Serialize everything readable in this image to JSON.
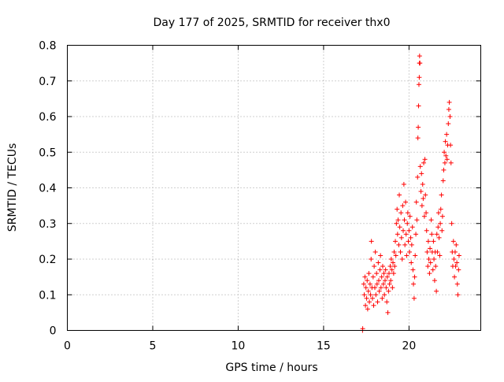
{
  "chart_data": {
    "type": "scatter",
    "title": "Day 177 of 2025, SRMTID for receiver thx0",
    "xlabel": "GPS time / hours",
    "ylabel": "SRMTID / TECUs",
    "xlim": [
      0,
      24.2
    ],
    "ylim": [
      0,
      0.8
    ],
    "xticks": [
      0,
      5,
      10,
      15,
      20
    ],
    "xtick_labels": [
      "0",
      "5",
      "10",
      "15",
      "20"
    ],
    "yticks": [
      0,
      0.1,
      0.2,
      0.3,
      0.4,
      0.5,
      0.6,
      0.7,
      0.8
    ],
    "ytick_labels": [
      "0",
      "0.1",
      "0.2",
      "0.3",
      "0.4",
      "0.5",
      "0.6",
      "0.7",
      "0.8"
    ],
    "grid": true,
    "marker": "+",
    "marker_color": "#ff0000",
    "series": [
      {
        "name": "SRMTID",
        "points": [
          [
            17.28,
            0.0
          ],
          [
            17.29,
            0.005
          ],
          [
            17.35,
            0.13
          ],
          [
            17.38,
            0.1
          ],
          [
            17.42,
            0.15
          ],
          [
            17.45,
            0.07
          ],
          [
            17.48,
            0.12
          ],
          [
            17.52,
            0.09
          ],
          [
            17.55,
            0.14
          ],
          [
            17.58,
            0.06
          ],
          [
            17.62,
            0.11
          ],
          [
            17.65,
            0.16
          ],
          [
            17.68,
            0.08
          ],
          [
            17.72,
            0.13
          ],
          [
            17.75,
            0.1
          ],
          [
            17.78,
            0.2
          ],
          [
            17.8,
            0.25
          ],
          [
            17.83,
            0.12
          ],
          [
            17.86,
            0.09
          ],
          [
            17.9,
            0.15
          ],
          [
            17.93,
            0.07
          ],
          [
            17.96,
            0.18
          ],
          [
            18.0,
            0.12
          ],
          [
            18.03,
            0.22
          ],
          [
            18.06,
            0.1
          ],
          [
            18.1,
            0.16
          ],
          [
            18.13,
            0.13
          ],
          [
            18.16,
            0.08
          ],
          [
            18.2,
            0.19
          ],
          [
            18.23,
            0.14
          ],
          [
            18.26,
            0.11
          ],
          [
            18.3,
            0.17
          ],
          [
            18.33,
            0.21
          ],
          [
            18.36,
            0.12
          ],
          [
            18.4,
            0.15
          ],
          [
            18.43,
            0.09
          ],
          [
            18.46,
            0.18
          ],
          [
            18.5,
            0.13
          ],
          [
            18.53,
            0.16
          ],
          [
            18.56,
            0.1
          ],
          [
            18.6,
            0.14
          ],
          [
            18.63,
            0.17
          ],
          [
            18.66,
            0.12
          ],
          [
            18.7,
            0.08
          ],
          [
            18.73,
            0.15
          ],
          [
            18.76,
            0.05
          ],
          [
            18.8,
            0.11
          ],
          [
            18.83,
            0.16
          ],
          [
            18.86,
            0.13
          ],
          [
            18.9,
            0.18
          ],
          [
            18.93,
            0.14
          ],
          [
            18.96,
            0.2
          ],
          [
            19.0,
            0.17
          ],
          [
            19.03,
            0.12
          ],
          [
            19.06,
            0.19
          ],
          [
            19.1,
            0.16
          ],
          [
            19.13,
            0.22
          ],
          [
            19.16,
            0.18
          ],
          [
            19.2,
            0.25
          ],
          [
            19.23,
            0.21
          ],
          [
            19.26,
            0.3
          ],
          [
            19.3,
            0.34
          ],
          [
            19.33,
            0.27
          ],
          [
            19.36,
            0.31
          ],
          [
            19.4,
            0.24
          ],
          [
            19.43,
            0.38
          ],
          [
            19.46,
            0.29
          ],
          [
            19.5,
            0.22
          ],
          [
            19.53,
            0.33
          ],
          [
            19.56,
            0.26
          ],
          [
            19.6,
            0.2
          ],
          [
            19.63,
            0.35
          ],
          [
            19.66,
            0.28
          ],
          [
            19.7,
            0.41
          ],
          [
            19.73,
            0.31
          ],
          [
            19.76,
            0.24
          ],
          [
            19.8,
            0.36
          ],
          [
            19.83,
            0.27
          ],
          [
            19.86,
            0.21
          ],
          [
            19.9,
            0.3
          ],
          [
            19.93,
            0.33
          ],
          [
            19.96,
            0.25
          ],
          [
            20.0,
            0.28
          ],
          [
            20.03,
            0.22
          ],
          [
            20.06,
            0.32
          ],
          [
            20.1,
            0.26
          ],
          [
            20.13,
            0.19
          ],
          [
            20.16,
            0.24
          ],
          [
            20.2,
            0.29
          ],
          [
            20.23,
            0.17
          ],
          [
            20.26,
            0.13
          ],
          [
            20.3,
            0.09
          ],
          [
            20.33,
            0.15
          ],
          [
            20.36,
            0.21
          ],
          [
            20.4,
            0.27
          ],
          [
            20.43,
            0.36
          ],
          [
            20.46,
            0.31
          ],
          [
            20.5,
            0.43
          ],
          [
            20.52,
            0.54
          ],
          [
            20.54,
            0.57
          ],
          [
            20.56,
            0.63
          ],
          [
            20.58,
            0.69
          ],
          [
            20.6,
            0.71
          ],
          [
            20.61,
            0.75
          ],
          [
            20.62,
            0.77
          ],
          [
            20.64,
            0.75
          ],
          [
            20.66,
            0.46
          ],
          [
            20.7,
            0.39
          ],
          [
            20.73,
            0.44
          ],
          [
            20.76,
            0.35
          ],
          [
            20.8,
            0.41
          ],
          [
            20.83,
            0.37
          ],
          [
            20.86,
            0.47
          ],
          [
            20.9,
            0.32
          ],
          [
            20.93,
            0.48
          ],
          [
            20.96,
            0.38
          ],
          [
            21.0,
            0.33
          ],
          [
            21.03,
            0.28
          ],
          [
            21.06,
            0.22
          ],
          [
            21.1,
            0.18
          ],
          [
            21.13,
            0.25
          ],
          [
            21.16,
            0.2
          ],
          [
            21.2,
            0.16
          ],
          [
            21.23,
            0.23
          ],
          [
            21.26,
            0.19
          ],
          [
            21.3,
            0.31
          ],
          [
            21.33,
            0.27
          ],
          [
            21.36,
            0.22
          ],
          [
            21.4,
            0.17
          ],
          [
            21.43,
            0.25
          ],
          [
            21.46,
            0.2
          ],
          [
            21.5,
            0.14
          ],
          [
            21.53,
            0.22
          ],
          [
            21.56,
            0.18
          ],
          [
            21.6,
            0.11
          ],
          [
            21.63,
            0.27
          ],
          [
            21.66,
            0.22
          ],
          [
            21.7,
            0.29
          ],
          [
            21.73,
            0.33
          ],
          [
            21.76,
            0.26
          ],
          [
            21.8,
            0.21
          ],
          [
            21.83,
            0.3
          ],
          [
            21.86,
            0.34
          ],
          [
            21.9,
            0.38
          ],
          [
            21.93,
            0.28
          ],
          [
            21.96,
            0.32
          ],
          [
            22.0,
            0.42
          ],
          [
            22.03,
            0.45
          ],
          [
            22.06,
            0.5
          ],
          [
            22.1,
            0.47
          ],
          [
            22.13,
            0.53
          ],
          [
            22.16,
            0.49
          ],
          [
            22.2,
            0.55
          ],
          [
            22.23,
            0.48
          ],
          [
            22.26,
            0.52
          ],
          [
            22.3,
            0.58
          ],
          [
            22.33,
            0.62
          ],
          [
            22.36,
            0.64
          ],
          [
            22.4,
            0.6
          ],
          [
            22.43,
            0.52
          ],
          [
            22.46,
            0.47
          ],
          [
            22.5,
            0.3
          ],
          [
            22.53,
            0.22
          ],
          [
            22.56,
            0.18
          ],
          [
            22.6,
            0.25
          ],
          [
            22.63,
            0.2
          ],
          [
            22.66,
            0.15
          ],
          [
            22.7,
            0.22
          ],
          [
            22.73,
            0.18
          ],
          [
            22.76,
            0.24
          ],
          [
            22.8,
            0.19
          ],
          [
            22.83,
            0.13
          ],
          [
            22.86,
            0.1
          ],
          [
            22.9,
            0.17
          ],
          [
            22.93,
            0.21
          ]
        ]
      }
    ]
  }
}
